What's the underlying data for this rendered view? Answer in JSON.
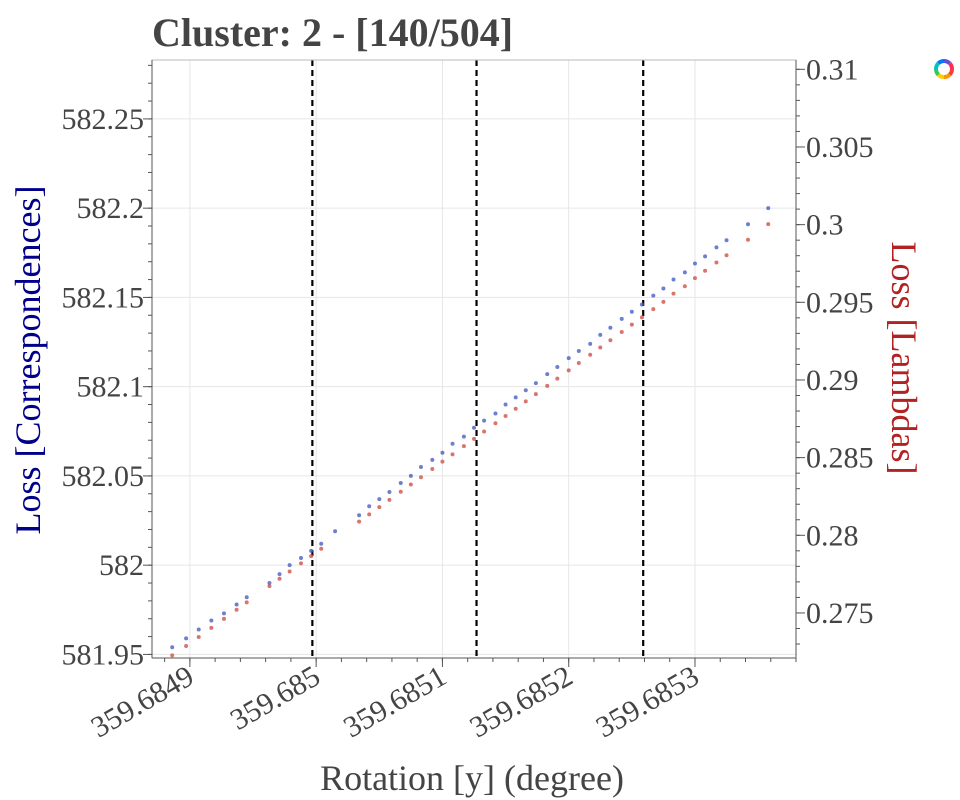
{
  "chart_data": {
    "type": "scatter",
    "title": "Cluster: 2 - [140/504]",
    "xlabel": "Rotation [y] (degree)",
    "ylabel_left": "Loss [Correspondences]",
    "ylabel_right": "Loss [Lambdas]",
    "xlim": [
      359.68487,
      359.68538
    ],
    "ylim_left": [
      581.948,
      582.283
    ],
    "ylim_right": [
      0.2721,
      0.3106
    ],
    "x_ticks": [
      {
        "value": 359.6849,
        "label": "359.6849"
      },
      {
        "value": 359.685,
        "label": "359.685"
      },
      {
        "value": 359.6851,
        "label": "359.6851"
      },
      {
        "value": 359.6852,
        "label": "359.6852"
      },
      {
        "value": 359.6853,
        "label": "359.6853"
      }
    ],
    "y_left_ticks": [
      {
        "value": 581.95,
        "label": "581.95"
      },
      {
        "value": 582.0,
        "label": "582"
      },
      {
        "value": 582.05,
        "label": "582.05"
      },
      {
        "value": 582.1,
        "label": "582.1"
      },
      {
        "value": 582.15,
        "label": "582.15"
      },
      {
        "value": 582.2,
        "label": "582.2"
      },
      {
        "value": 582.25,
        "label": "582.25"
      }
    ],
    "y_right_ticks": [
      {
        "value": 0.275,
        "label": "0.275"
      },
      {
        "value": 0.28,
        "label": "0.28"
      },
      {
        "value": 0.285,
        "label": "0.285"
      },
      {
        "value": 0.29,
        "label": "0.29"
      },
      {
        "value": 0.295,
        "label": "0.295"
      },
      {
        "value": 0.3,
        "label": "0.3"
      },
      {
        "value": 0.305,
        "label": "0.305"
      },
      {
        "value": 0.31,
        "label": "0.31"
      }
    ],
    "vertical_lines": [
      359.684997,
      359.685127,
      359.685259
    ],
    "grid": true,
    "series": [
      {
        "axis": "left",
        "color": "#4a5fc1",
        "x": [
          359.684886,
          359.684897,
          359.684907,
          359.684917,
          359.684927,
          359.684937,
          359.684945,
          359.684963,
          359.684971,
          359.684979,
          359.684988,
          359.684996,
          359.685004,
          359.685015,
          359.685034,
          359.685042,
          359.68505,
          359.685058,
          359.685067,
          359.685075,
          359.685083,
          359.685092,
          359.6851,
          359.685108,
          359.685117,
          359.685125,
          359.685133,
          359.685142,
          359.68515,
          359.685158,
          359.685166,
          359.685174,
          359.685183,
          359.685191,
          359.6852,
          359.685208,
          359.685217,
          359.685225,
          359.685233,
          359.685242,
          359.68525,
          359.685258,
          359.685267,
          359.685275,
          359.685283,
          359.685292,
          359.6853,
          359.685308,
          359.685317,
          359.685325,
          359.685342,
          359.685358
        ],
        "y": [
          581.954,
          581.959,
          581.964,
          581.969,
          581.973,
          581.978,
          581.982,
          581.99,
          581.995,
          582.0,
          582.004,
          582.008,
          582.012,
          582.019,
          582.028,
          582.033,
          582.037,
          582.041,
          582.046,
          582.05,
          582.055,
          582.059,
          582.063,
          582.068,
          582.072,
          582.077,
          582.081,
          582.085,
          582.09,
          582.094,
          582.098,
          582.102,
          582.107,
          582.111,
          582.116,
          582.12,
          582.124,
          582.129,
          582.133,
          582.138,
          582.142,
          582.146,
          582.151,
          582.155,
          582.16,
          582.164,
          582.169,
          582.173,
          582.178,
          582.182,
          582.191,
          582.2
        ]
      },
      {
        "axis": "right",
        "color": "#d0524a",
        "x": [
          359.684886,
          359.684897,
          359.684907,
          359.684917,
          359.684927,
          359.684937,
          359.684945,
          359.684963,
          359.684971,
          359.684979,
          359.684988,
          359.684996,
          359.685004,
          359.685034,
          359.685042,
          359.68505,
          359.685058,
          359.685067,
          359.685075,
          359.685083,
          359.685092,
          359.6851,
          359.685108,
          359.685117,
          359.685125,
          359.685133,
          359.685142,
          359.68515,
          359.685158,
          359.685166,
          359.685174,
          359.685183,
          359.685191,
          359.6852,
          359.685208,
          359.685217,
          359.685225,
          359.685233,
          359.685242,
          359.68525,
          359.685258,
          359.685267,
          359.685275,
          359.685283,
          359.685292,
          359.6853,
          359.685308,
          359.685317,
          359.685325,
          359.685342,
          359.685358
        ],
        "y": [
          0.27227,
          0.27287,
          0.27345,
          0.27404,
          0.27462,
          0.27521,
          0.27568,
          0.27673,
          0.2772,
          0.27767,
          0.27819,
          0.27866,
          0.27913,
          0.28088,
          0.28135,
          0.28181,
          0.28228,
          0.2828,
          0.28327,
          0.28374,
          0.28427,
          0.28474,
          0.28521,
          0.28574,
          0.28621,
          0.28668,
          0.28721,
          0.28768,
          0.28815,
          0.28862,
          0.28909,
          0.28962,
          0.29009,
          0.29062,
          0.29109,
          0.29162,
          0.29209,
          0.29256,
          0.29309,
          0.29356,
          0.29403,
          0.29456,
          0.29503,
          0.29556,
          0.29603,
          0.29656,
          0.29703,
          0.29756,
          0.29803,
          0.29903,
          0.30003
        ]
      }
    ]
  },
  "colors": {
    "left_axis_title": "#00008b",
    "right_axis_title": "#b22222"
  },
  "icons": {
    "top_right": "color-wheel-icon"
  }
}
